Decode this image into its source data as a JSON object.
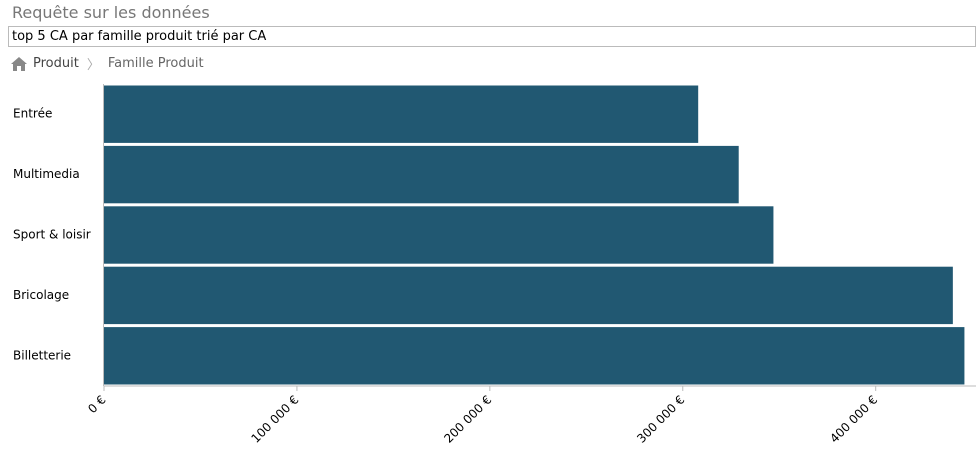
{
  "header": {
    "title": "Requête sur les données",
    "query": "top 5 CA par famille produit trié par CA"
  },
  "breadcrumb": [
    "Produit",
    "Famille Produit"
  ],
  "chart_data": {
    "type": "bar",
    "orientation": "horizontal",
    "categories": [
      "Entrée",
      "Multimedia",
      "Sport & loisir",
      "Bricolage",
      "Billetterie"
    ],
    "values": [
      308000,
      329000,
      347000,
      440000,
      446000
    ],
    "color": "#215872",
    "xlim": [
      0,
      452000
    ],
    "xticks": [
      {
        "value": 0,
        "label": "0 €"
      },
      {
        "value": 100000,
        "label": "100 000 €"
      },
      {
        "value": 200000,
        "label": "200 000 €"
      },
      {
        "value": 300000,
        "label": "300 000 €"
      },
      {
        "value": 400000,
        "label": "400 000 €"
      }
    ]
  }
}
